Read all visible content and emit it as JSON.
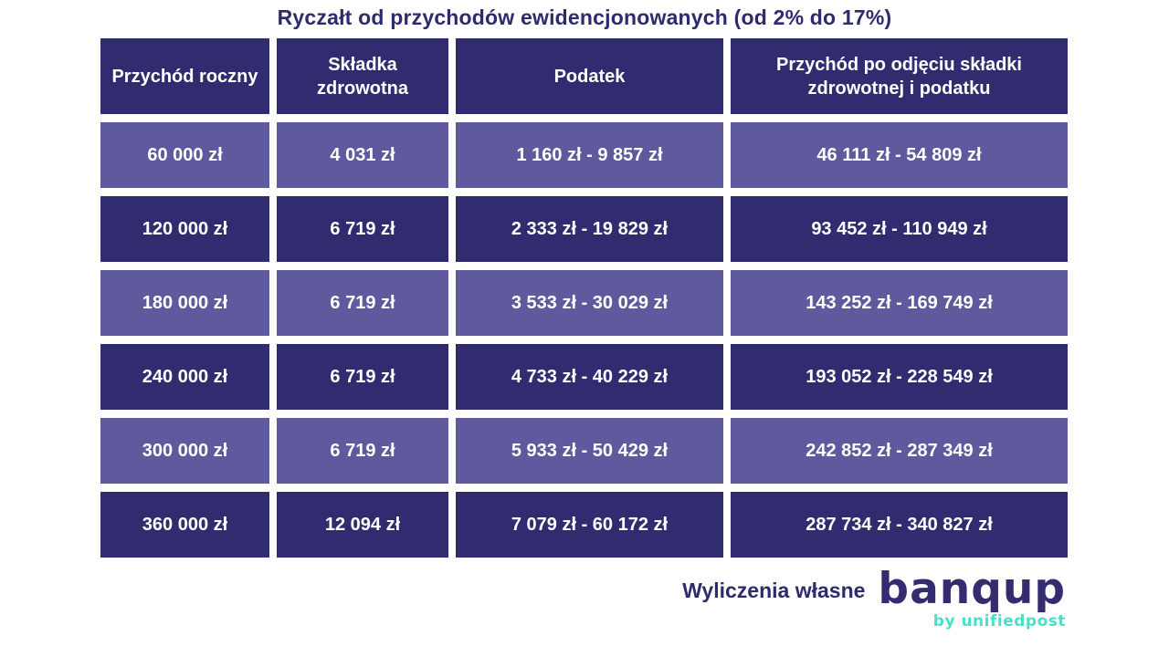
{
  "title": "Ryczałt od przychodów ewidencjonowanych (od 2% do 17%)",
  "chart_data": {
    "type": "table",
    "title": "Ryczałt od przychodów ewidencjonowanych (od 2% do 17%)",
    "columns": [
      "Przychód roczny",
      "Składka zdrowotna",
      "Podatek",
      "Przychód po odjęciu składki zdrowotnej i podatku"
    ],
    "rows": [
      [
        "60 000 zł",
        "4 031 zł",
        "1 160 zł - 9 857 zł",
        "46 111 zł - 54 809 zł"
      ],
      [
        "120 000 zł",
        "6 719 zł",
        "2 333 zł - 19 829 zł",
        "93 452 zł - 110 949 zł"
      ],
      [
        "180 000 zł",
        "6 719 zł",
        "3 533 zł - 30 029 zł",
        "143 252 zł - 169 749 zł"
      ],
      [
        "240 000 zł",
        "6 719 zł",
        "4 733 zł - 40 229 zł",
        "193 052 zł - 228 549 zł"
      ],
      [
        "300 000 zł",
        "6 719 zł",
        "5 933 zł - 50 429 zł",
        "242 852 zł - 287 349 zł"
      ],
      [
        "360 000 zł",
        "12 094 zł",
        "7 079 zł - 60 172 zł",
        "287 734 zł - 340 827 zł"
      ]
    ]
  },
  "footer": {
    "source_note": "Wyliczenia własne",
    "logo_text": "banqup",
    "logo_subtext": "by unifiedpost"
  },
  "colors": {
    "header_bg": "#312b6f",
    "row_dark_bg": "#312b6f",
    "row_light_bg": "#5f5a9d",
    "title_text": "#2e2a6e",
    "cell_text": "#ffffff",
    "logo_main": "#332c6e",
    "logo_sub": "#4ae0c8"
  }
}
